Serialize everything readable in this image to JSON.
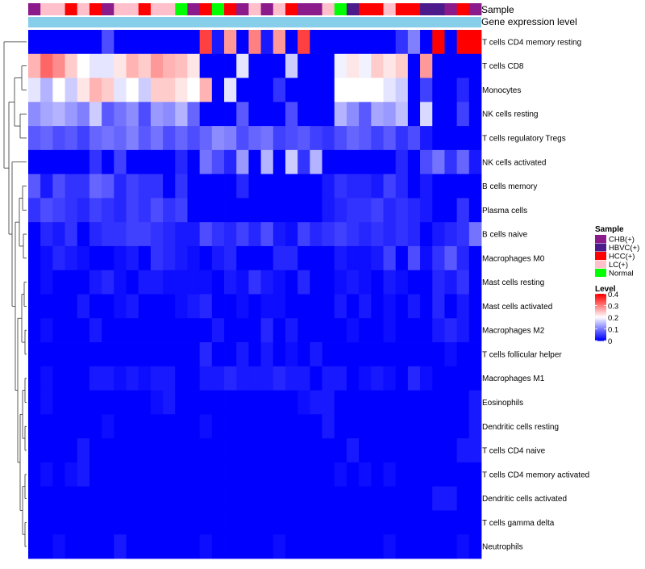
{
  "chart_data": {
    "type": "heatmap",
    "annotation_titles": [
      "Sample",
      "Gene expression level"
    ],
    "sample_colors": {
      "CHB(+)": "#8B1A8B",
      "HBVC(+)": "#4B1A8B",
      "HCC(+)": "#FF0000",
      "LC(+)": "#FFC0CB",
      "Normal": "#00FF00"
    },
    "samples": [
      "CHB(+)",
      "LC(+)",
      "LC(+)",
      "HCC(+)",
      "LC(+)",
      "HCC(+)",
      "CHB(+)",
      "LC(+)",
      "LC(+)",
      "HCC(+)",
      "LC(+)",
      "LC(+)",
      "Normal",
      "CHB(+)",
      "HCC(+)",
      "Normal",
      "HCC(+)",
      "CHB(+)",
      "LC(+)",
      "CHB(+)",
      "LC(+)",
      "HCC(+)",
      "CHB(+)",
      "CHB(+)",
      "LC(+)",
      "Normal",
      "HBVC(+)",
      "HCC(+)",
      "HCC(+)",
      "LC(+)",
      "HCC(+)",
      "HCC(+)",
      "HBVC(+)",
      "HBVC(+)",
      "CHB(+)",
      "HCC(+)",
      "CHB(+)"
    ],
    "expression_bar_color": "#87CEEB",
    "legend": {
      "sample_title": "Sample",
      "sample_entries": [
        "CHB(+)",
        "HBVC(+)",
        "HCC(+)",
        "LC(+)",
        "Normal"
      ],
      "level_title": "Level",
      "level_ticks": [
        "0.4",
        "0.3",
        "0.2",
        "0.1",
        "0"
      ],
      "level_range": [
        0,
        0.4
      ]
    },
    "color_scale": {
      "low": "#0000FF",
      "mid": "#FFFFFF",
      "high": "#FF0000"
    },
    "rows": [
      {
        "label": "T cells CD4 memory resting",
        "values": [
          0,
          0,
          0,
          0,
          0,
          0,
          0.06,
          0,
          0,
          0,
          0,
          0,
          0,
          0,
          0.35,
          0.02,
          0.28,
          0,
          0.3,
          0.02,
          0.28,
          0,
          0.35,
          0,
          0,
          0,
          0,
          0,
          0,
          0,
          0.04,
          0.1,
          0,
          0.4,
          0,
          0.4,
          0.4
        ]
      },
      {
        "label": "T cells CD8",
        "values": [
          0.26,
          0.32,
          0.29,
          0.24,
          0.2,
          0.18,
          0.18,
          0.22,
          0.26,
          0.24,
          0.28,
          0.26,
          0.25,
          0.22,
          0,
          0,
          0,
          0.18,
          0,
          0,
          0,
          0.16,
          0,
          0,
          0,
          0.19,
          0.22,
          0.19,
          0.24,
          0.22,
          0.24,
          0,
          0.28,
          0,
          0,
          0,
          0
        ]
      },
      {
        "label": "Monocytes",
        "values": [
          0.18,
          0.14,
          0.2,
          0.16,
          0.22,
          0.26,
          0.24,
          0.18,
          0.2,
          0.16,
          0.24,
          0.24,
          0.22,
          0.2,
          0.26,
          0,
          0.18,
          0,
          0,
          0,
          0.04,
          0,
          0,
          0,
          0,
          0.2,
          0.2,
          0.2,
          0.2,
          0.18,
          0.16,
          0,
          0.05,
          0,
          0,
          0.03,
          0
        ]
      },
      {
        "label": "NK cells resting",
        "values": [
          0.11,
          0.13,
          0.14,
          0.12,
          0.1,
          0.16,
          0.07,
          0.09,
          0.11,
          0.06,
          0.12,
          0.11,
          0.14,
          0.08,
          0,
          0,
          0,
          0.07,
          0,
          0,
          0,
          0.06,
          0,
          0,
          0,
          0.14,
          0.11,
          0.07,
          0.13,
          0.12,
          0.15,
          0,
          0.17,
          0,
          0,
          0.05,
          0
        ]
      },
      {
        "label": "T cells regulatory  Tregs",
        "values": [
          0.07,
          0.08,
          0.06,
          0.07,
          0.05,
          0.08,
          0.09,
          0.08,
          0.1,
          0.07,
          0.09,
          0.06,
          0.08,
          0.06,
          0.08,
          0.11,
          0.1,
          0.06,
          0.08,
          0.09,
          0.05,
          0.06,
          0.07,
          0.05,
          0.04,
          0.06,
          0.08,
          0.07,
          0.05,
          0.07,
          0.04,
          0.06,
          0.02,
          0,
          0,
          0,
          0
        ]
      },
      {
        "label": "NK cells activated",
        "values": [
          0,
          0,
          0,
          0,
          0,
          0.04,
          0,
          0.05,
          0,
          0,
          0,
          0,
          0.03,
          0,
          0.09,
          0.06,
          0.03,
          0.12,
          0,
          0.14,
          0,
          0.16,
          0.04,
          0.14,
          0,
          0,
          0,
          0,
          0,
          0,
          0.03,
          0,
          0.06,
          0.09,
          0.04,
          0.08,
          0.02
        ]
      },
      {
        "label": "B cells memory",
        "values": [
          0.07,
          0.02,
          0.06,
          0.04,
          0.04,
          0.08,
          0.07,
          0.03,
          0.05,
          0.04,
          0.04,
          0,
          0.04,
          0,
          0,
          0,
          0,
          0.03,
          0,
          0,
          0,
          0,
          0,
          0,
          0.02,
          0.04,
          0.03,
          0.03,
          0.02,
          0.05,
          0.03,
          0,
          0.02,
          0,
          0,
          0,
          0
        ]
      },
      {
        "label": "Plasma cells",
        "values": [
          0.04,
          0.06,
          0.05,
          0.04,
          0.03,
          0.05,
          0.04,
          0.03,
          0.05,
          0.04,
          0.06,
          0.04,
          0.05,
          0,
          0,
          0,
          0,
          0,
          0,
          0,
          0,
          0,
          0,
          0,
          0.02,
          0.03,
          0.04,
          0.04,
          0.05,
          0.03,
          0.04,
          0.03,
          0.02,
          0,
          0,
          0.04,
          0
        ]
      },
      {
        "label": "B cells naive",
        "values": [
          0,
          0.03,
          0.02,
          0.04,
          0,
          0.03,
          0.04,
          0.04,
          0.05,
          0.05,
          0.04,
          0.03,
          0.02,
          0.02,
          0.06,
          0.04,
          0.03,
          0.05,
          0.03,
          0.06,
          0.02,
          0.01,
          0.05,
          0.03,
          0.04,
          0.05,
          0.04,
          0.03,
          0.04,
          0.03,
          0.04,
          0.03,
          0,
          0.02,
          0.03,
          0.04,
          0.09
        ]
      },
      {
        "label": "Macrophages M0",
        "values": [
          0,
          0.01,
          0.03,
          0.02,
          0.01,
          0,
          0,
          0.01,
          0.02,
          0,
          0.04,
          0.03,
          0.02,
          0.01,
          0,
          0.02,
          0.03,
          0,
          0,
          0,
          0.03,
          0.03,
          0,
          0,
          0,
          0.02,
          0.01,
          0.01,
          0.02,
          0.05,
          0,
          0.06,
          0.01,
          0.04,
          0.07,
          0.03,
          0
        ]
      },
      {
        "label": "Mast cells resting",
        "values": [
          0,
          0.01,
          0,
          0,
          0,
          0.02,
          0.03,
          0.01,
          0,
          0.02,
          0.02,
          0.01,
          0.01,
          0.01,
          0.01,
          0,
          0.02,
          0.01,
          0.04,
          0.02,
          0.01,
          0,
          0.03,
          0,
          0,
          0.01,
          0.02,
          0.01,
          0,
          0.02,
          0.01,
          0,
          0,
          0.03,
          0.02,
          0.04,
          0
        ]
      },
      {
        "label": "Mast cells activated",
        "values": [
          0,
          0,
          0,
          0,
          0.02,
          0,
          0,
          0.01,
          0.02,
          0,
          0,
          0,
          0.01,
          0.02,
          0.03,
          0,
          0,
          0.01,
          0,
          0.01,
          0.01,
          0,
          0,
          0,
          0,
          0.02,
          0,
          0.02,
          0,
          0.01,
          0,
          0.02,
          0,
          0.03,
          0,
          0.02,
          0
        ]
      },
      {
        "label": "Macrophages M2",
        "values": [
          0,
          0.01,
          0,
          0,
          0,
          0.02,
          0,
          0,
          0,
          0,
          0,
          0,
          0,
          0,
          0,
          0.02,
          0,
          0,
          0,
          0.03,
          0,
          0.02,
          0,
          0,
          0,
          0,
          0.01,
          0,
          0,
          0.01,
          0,
          0,
          0,
          0.02,
          0.03,
          0.02,
          0
        ]
      },
      {
        "label": "T cells follicular helper",
        "values": [
          0,
          0,
          0,
          0,
          0,
          0,
          0,
          0,
          0,
          0,
          0,
          0,
          0,
          0,
          0.03,
          0,
          0,
          0.02,
          0,
          0.02,
          0,
          0.01,
          0,
          0.02,
          0,
          0,
          0,
          0,
          0,
          0,
          0,
          0,
          0,
          0,
          0.01,
          0,
          0
        ]
      },
      {
        "label": "Macrophages M1",
        "values": [
          0,
          0.01,
          0,
          0,
          0,
          0.02,
          0.02,
          0.01,
          0.02,
          0.01,
          0.02,
          0.02,
          0,
          0,
          0.02,
          0.02,
          0.03,
          0.02,
          0.02,
          0.02,
          0.03,
          0.02,
          0.02,
          0,
          0.02,
          0.02,
          0,
          0.01,
          0.02,
          0.01,
          0,
          0.03,
          0.01,
          0,
          0,
          0,
          0
        ]
      },
      {
        "label": "Eosinophils",
        "values": [
          0,
          0.01,
          0,
          0,
          0,
          0,
          0,
          0,
          0,
          0,
          0.01,
          0.02,
          0,
          0,
          0,
          0,
          0,
          0,
          0,
          0,
          0,
          0,
          0.01,
          0.02,
          0.02,
          0,
          0,
          0,
          0,
          0,
          0,
          0,
          0,
          0,
          0,
          0,
          0.02
        ]
      },
      {
        "label": "Dendritic cells resting",
        "values": [
          0,
          0,
          0,
          0,
          0,
          0,
          0.01,
          0,
          0,
          0,
          0,
          0,
          0,
          0,
          0.01,
          0,
          0,
          0,
          0,
          0,
          0,
          0,
          0,
          0,
          0.02,
          0,
          0,
          0,
          0,
          0,
          0,
          0,
          0,
          0,
          0,
          0,
          0.02
        ]
      },
      {
        "label": "T cells CD4 naive",
        "values": [
          0,
          0,
          0,
          0,
          0.02,
          0,
          0,
          0,
          0,
          0,
          0,
          0,
          0,
          0,
          0,
          0,
          0,
          0,
          0,
          0,
          0,
          0,
          0,
          0,
          0,
          0,
          0.02,
          0,
          0,
          0,
          0,
          0,
          0,
          0,
          0,
          0.02,
          0.02
        ]
      },
      {
        "label": "T cells CD4 memory activated",
        "values": [
          0,
          0.01,
          0,
          0.01,
          0.02,
          0,
          0,
          0,
          0,
          0,
          0,
          0,
          0,
          0,
          0,
          0,
          0,
          0,
          0,
          0,
          0,
          0,
          0,
          0,
          0,
          0.01,
          0,
          0.01,
          0,
          0.01,
          0,
          0,
          0,
          0,
          0,
          0,
          0
        ]
      },
      {
        "label": "Dendritic cells activated",
        "values": [
          0,
          0,
          0,
          0,
          0,
          0,
          0,
          0,
          0,
          0,
          0,
          0,
          0,
          0,
          0,
          0,
          0,
          0,
          0,
          0,
          0,
          0,
          0,
          0,
          0,
          0,
          0,
          0,
          0,
          0,
          0,
          0,
          0,
          0.02,
          0.02,
          0,
          0
        ]
      },
      {
        "label": "T cells gamma delta",
        "values": [
          0,
          0,
          0,
          0,
          0,
          0,
          0,
          0,
          0,
          0,
          0,
          0,
          0,
          0,
          0,
          0,
          0,
          0,
          0,
          0,
          0,
          0,
          0,
          0,
          0,
          0,
          0,
          0,
          0,
          0,
          0,
          0,
          0,
          0,
          0,
          0,
          0
        ]
      },
      {
        "label": "Neutrophils",
        "values": [
          0,
          0,
          0.01,
          0,
          0,
          0,
          0,
          0.02,
          0,
          0,
          0,
          0,
          0,
          0,
          0.01,
          0,
          0,
          0,
          0,
          0,
          0.01,
          0,
          0,
          0,
          0,
          0,
          0,
          0,
          0,
          0.01,
          0,
          0,
          0,
          0,
          0,
          0.01,
          0
        ]
      }
    ]
  }
}
